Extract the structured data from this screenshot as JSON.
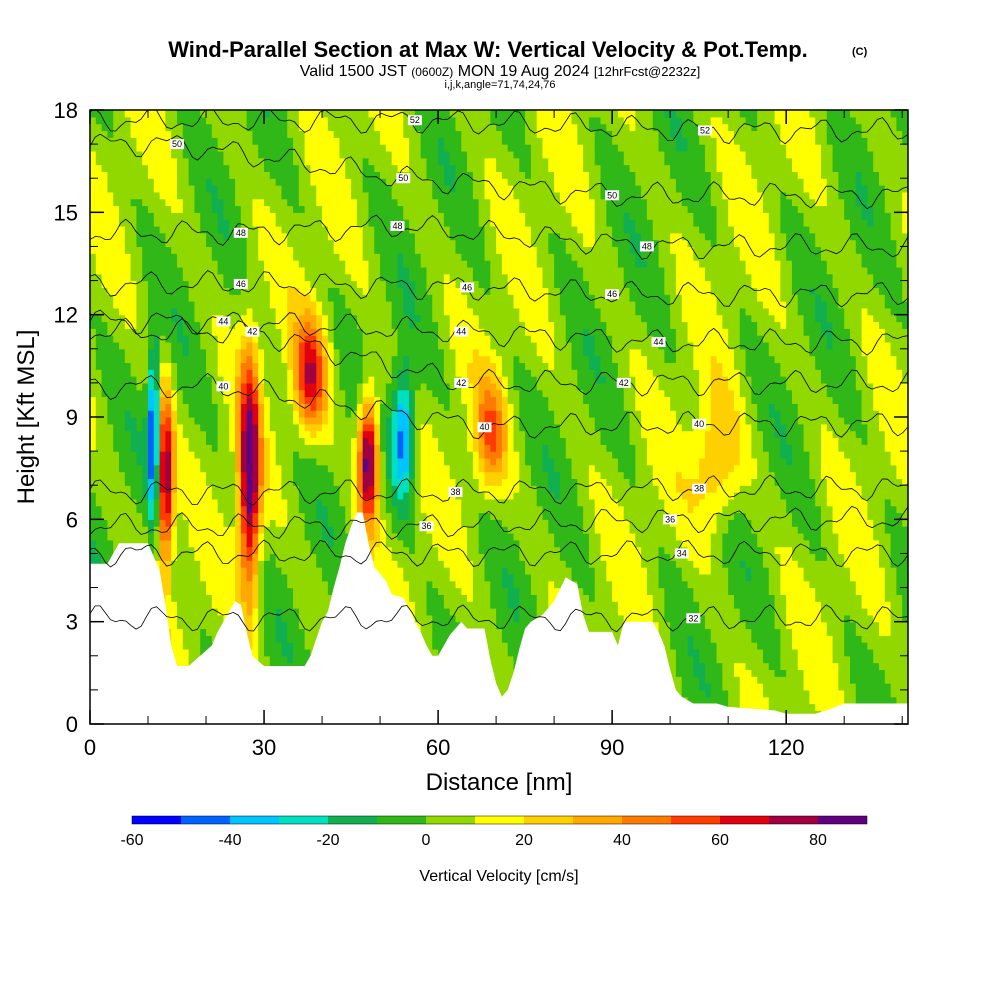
{
  "title": {
    "main": "Wind-Parallel Section at Max W: Vertical Velocity & Pot.Temp.",
    "copyright": "(C)",
    "valid_prefix": "Valid 1500 JST",
    "valid_utc": "(0600Z)",
    "valid_date": "MON 19 Aug 2024",
    "forecast": "[12hrFcst@2232z]",
    "indices": "i,j,k,angle=71,74,24,76"
  },
  "chart_data": {
    "type": "heatmap",
    "xlabel": "Distance [nm]",
    "ylabel": "Height [Kft MSL]",
    "xlim": [
      0,
      141
    ],
    "ylim": [
      0,
      18
    ],
    "xticks": [
      0,
      30,
      60,
      90,
      120
    ],
    "yticks": [
      0,
      3,
      6,
      9,
      12,
      15,
      18
    ],
    "colorbar": {
      "label": "Vertical Velocity [cm/s]",
      "bounds": [
        -60,
        90
      ],
      "step": 10,
      "ticks": [
        -60,
        -40,
        -20,
        0,
        20,
        40,
        60,
        80
      ],
      "colors": [
        "#0000ff",
        "#0062ff",
        "#00c4ff",
        "#00e0c0",
        "#10b050",
        "#30b818",
        "#90d800",
        "#ffff00",
        "#ffd000",
        "#ffa800",
        "#ff7a00",
        "#ff3c00",
        "#e00010",
        "#a00040",
        "#600080"
      ]
    },
    "terrain_kft": [
      [
        0,
        4.7
      ],
      [
        3,
        4.7
      ],
      [
        5,
        5.3
      ],
      [
        10,
        5.3
      ],
      [
        12,
        4.5
      ],
      [
        13,
        3.5
      ],
      [
        14,
        2.3
      ],
      [
        15,
        1.7
      ],
      [
        17,
        1.7
      ],
      [
        19,
        2.0
      ],
      [
        21,
        2.3
      ],
      [
        22,
        2.7
      ],
      [
        24,
        3.3
      ],
      [
        25,
        3.6
      ],
      [
        26,
        3.5
      ],
      [
        27,
        2.7
      ],
      [
        28,
        2.0
      ],
      [
        30,
        1.7
      ],
      [
        37,
        1.7
      ],
      [
        38,
        2.0
      ],
      [
        40,
        3.0
      ],
      [
        41,
        3.3
      ],
      [
        42,
        4.0
      ],
      [
        43,
        4.6
      ],
      [
        44,
        5.3
      ],
      [
        45,
        5.8
      ],
      [
        46,
        6.2
      ],
      [
        47,
        6.2
      ],
      [
        48,
        5.3
      ],
      [
        49,
        4.6
      ],
      [
        51,
        4.2
      ],
      [
        52,
        3.8
      ],
      [
        54,
        3.7
      ],
      [
        55,
        3.4
      ],
      [
        56,
        3.0
      ],
      [
        57,
        2.7
      ],
      [
        58,
        2.3
      ],
      [
        59,
        2.0
      ],
      [
        60,
        2.0
      ],
      [
        61,
        2.3
      ],
      [
        62,
        2.6
      ],
      [
        63,
        2.8
      ],
      [
        64,
        3.0
      ],
      [
        65,
        2.8
      ],
      [
        68,
        2.8
      ],
      [
        69,
        1.9
      ],
      [
        70,
        1.2
      ],
      [
        71,
        0.8
      ],
      [
        72,
        1.0
      ],
      [
        73,
        1.5
      ],
      [
        74,
        2.2
      ],
      [
        75,
        2.8
      ],
      [
        76,
        3.0
      ],
      [
        78,
        3.2
      ],
      [
        80,
        3.6
      ],
      [
        82,
        4.3
      ],
      [
        84,
        4.1
      ],
      [
        85,
        3.2
      ],
      [
        86,
        2.7
      ],
      [
        90,
        2.7
      ],
      [
        91,
        2.3
      ],
      [
        92,
        3.0
      ],
      [
        93,
        3.0
      ],
      [
        97,
        3.0
      ],
      [
        98,
        2.7
      ],
      [
        99,
        2.3
      ],
      [
        100,
        1.6
      ],
      [
        101,
        1.0
      ],
      [
        102,
        0.8
      ],
      [
        104,
        0.6
      ],
      [
        108,
        0.6
      ],
      [
        110,
        0.5
      ],
      [
        118,
        0.4
      ],
      [
        120,
        0.3
      ],
      [
        125,
        0.3
      ],
      [
        127,
        0.4
      ],
      [
        130,
        0.6
      ],
      [
        141,
        0.6
      ]
    ],
    "theta_contours": [
      {
        "value": 32,
        "label_at": [
          104,
          3.1
        ]
      },
      {
        "value": 34,
        "label_at": [
          102,
          5.0
        ]
      },
      {
        "value": 36,
        "label_at": [
          58,
          5.8
        ]
      },
      {
        "value": 36,
        "label_at": [
          100,
          6.0
        ]
      },
      {
        "value": 38,
        "label_at": [
          63,
          6.8
        ]
      },
      {
        "value": 38,
        "label_at": [
          105,
          6.9
        ]
      },
      {
        "value": 40,
        "label_at": [
          23,
          9.9
        ]
      },
      {
        "value": 40,
        "label_at": [
          68,
          8.7
        ]
      },
      {
        "value": 40,
        "label_at": [
          105,
          8.8
        ]
      },
      {
        "value": 42,
        "label_at": [
          28,
          11.5
        ]
      },
      {
        "value": 42,
        "label_at": [
          64,
          10.0
        ]
      },
      {
        "value": 42,
        "label_at": [
          92,
          10.0
        ]
      },
      {
        "value": 44,
        "label_at": [
          23,
          11.8
        ]
      },
      {
        "value": 44,
        "label_at": [
          64,
          11.5
        ]
      },
      {
        "value": 44,
        "label_at": [
          98,
          11.2
        ]
      },
      {
        "value": 46,
        "label_at": [
          26,
          12.9
        ]
      },
      {
        "value": 46,
        "label_at": [
          65,
          12.8
        ]
      },
      {
        "value": 46,
        "label_at": [
          90,
          12.6
        ]
      },
      {
        "value": 48,
        "label_at": [
          26,
          14.4
        ]
      },
      {
        "value": 48,
        "label_at": [
          53,
          14.6
        ]
      },
      {
        "value": 48,
        "label_at": [
          96,
          14.0
        ]
      },
      {
        "value": 50,
        "label_at": [
          15,
          17.0
        ]
      },
      {
        "value": 50,
        "label_at": [
          54,
          16.0
        ]
      },
      {
        "value": 50,
        "label_at": [
          90,
          15.5
        ]
      },
      {
        "value": 52,
        "label_at": [
          56,
          17.7
        ]
      },
      {
        "value": 52,
        "label_at": [
          106,
          17.4
        ]
      }
    ],
    "features": [
      {
        "w": -60,
        "x": 11,
        "y": 8.5,
        "sx": 0.7,
        "sy": 1.8
      },
      {
        "w": 80,
        "x": 13,
        "y": 7.2,
        "sx": 1.0,
        "sy": 1.8
      },
      {
        "w": 85,
        "x": 27.5,
        "y": 7.2,
        "sx": 1.3,
        "sy": 2.5
      },
      {
        "w": 60,
        "x": 38,
        "y": 10.2,
        "sx": 2.0,
        "sy": 1.2
      },
      {
        "w": 90,
        "x": 48,
        "y": 7.8,
        "sx": 1.2,
        "sy": 1.3
      },
      {
        "w": -50,
        "x": 54,
        "y": 8.5,
        "sx": 1.4,
        "sy": 1.4
      },
      {
        "w": 40,
        "x": 69,
        "y": 8.5,
        "sx": 2.0,
        "sy": 1.2
      },
      {
        "w": 30,
        "x": 108,
        "y": 7.6,
        "sx": 3.0,
        "sy": 1.3
      }
    ]
  }
}
